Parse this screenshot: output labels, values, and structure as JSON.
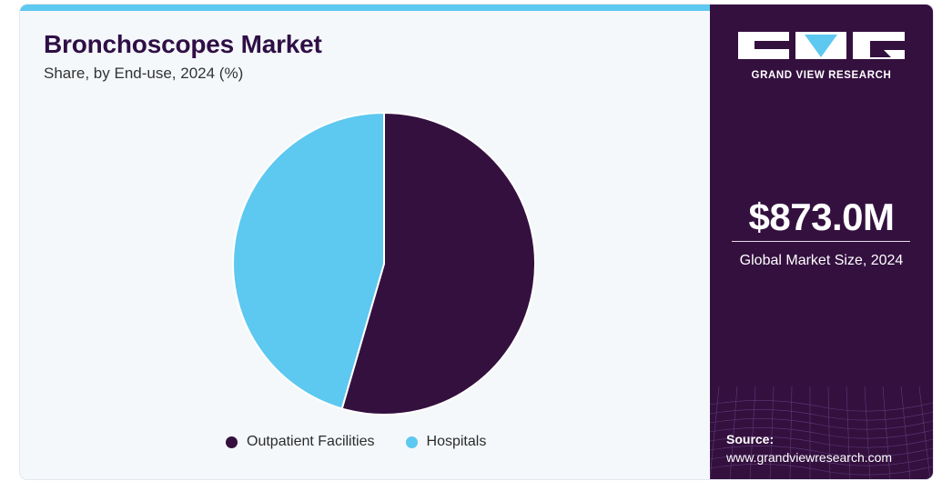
{
  "header": {
    "title": "Bronchoscopes Market",
    "subtitle": "Share, by End-use, 2024 (%)"
  },
  "chart_data": {
    "type": "pie",
    "title": "Bronchoscopes Market",
    "subtitle": "Share, by End-use, 2024 (%)",
    "categories": [
      "Outpatient Facilities",
      "Hospitals"
    ],
    "values": [
      54.5,
      45.5
    ],
    "colors": [
      "#34103f",
      "#5dc8f0"
    ],
    "start_angle_deg": 0,
    "direction": "clockwise",
    "legend": "bottom"
  },
  "legend": {
    "items": [
      {
        "label": "Outpatient Facilities",
        "color": "#34103f"
      },
      {
        "label": "Hospitals",
        "color": "#5dc8f0"
      }
    ]
  },
  "sidebar": {
    "brand": "GRAND VIEW RESEARCH",
    "market_size": "$873.0M",
    "market_size_label": "Global Market Size, 2024",
    "source_label": "Source:",
    "source_url": "www.grandviewresearch.com"
  },
  "colors": {
    "accent": "#5dc8f0",
    "brand_dark": "#34103f",
    "panel_background": "#f5f8fb"
  }
}
